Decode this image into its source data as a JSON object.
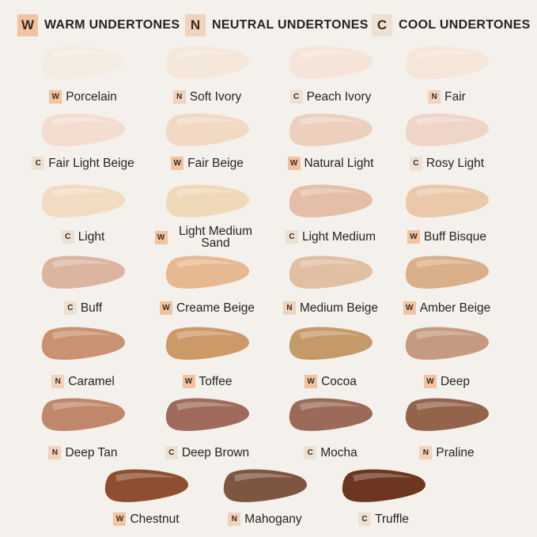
{
  "legend": [
    {
      "letter": "W",
      "label": "WARM UNDERTONES",
      "color": "#f1c3a1"
    },
    {
      "letter": "N",
      "label": "NEUTRAL UNDERTONES",
      "color": "#f0d3bd"
    },
    {
      "letter": "C",
      "label": "COOL UNDERTONES",
      "color": "#eee0d2"
    }
  ],
  "shades": [
    {
      "name": "Porcelain",
      "undertone": "W",
      "color": "#f4ece3"
    },
    {
      "name": "Soft Ivory",
      "undertone": "N",
      "color": "#f5e7da"
    },
    {
      "name": "Peach Ivory",
      "undertone": "C",
      "color": "#f6e4d9"
    },
    {
      "name": "Fair",
      "undertone": "N",
      "color": "#f6e6d8"
    },
    {
      "name": "Fair Light Beige",
      "undertone": "C",
      "color": "#f3ddd0"
    },
    {
      "name": "Fair Beige",
      "undertone": "W",
      "color": "#f1d9c4"
    },
    {
      "name": "Natural Light",
      "undertone": "W",
      "color": "#ecd0bd"
    },
    {
      "name": "Rosy Light",
      "undertone": "C",
      "color": "#efd5c8"
    },
    {
      "name": "Light",
      "undertone": "C",
      "color": "#f1dcc3"
    },
    {
      "name": "Light Medium Sand",
      "undertone": "W",
      "color": "#efd9b9"
    },
    {
      "name": "Light Medium",
      "undertone": "C",
      "color": "#e4bea6"
    },
    {
      "name": "Buff Bisque",
      "undertone": "W",
      "color": "#eac9aa"
    },
    {
      "name": "Buff",
      "undertone": "C",
      "color": "#dcb5a0"
    },
    {
      "name": "Creame Beige",
      "undertone": "W",
      "color": "#e7b993"
    },
    {
      "name": "Medium Beige",
      "undertone": "N",
      "color": "#e1bfa2"
    },
    {
      "name": "Amber Beige",
      "undertone": "W",
      "color": "#d9b08a"
    },
    {
      "name": "Caramel",
      "undertone": "N",
      "color": "#c99270"
    },
    {
      "name": "Toffee",
      "undertone": "W",
      "color": "#cc9a69"
    },
    {
      "name": "Cocoa",
      "undertone": "W",
      "color": "#c59a6a"
    },
    {
      "name": "Deep",
      "undertone": "W",
      "color": "#c59a80"
    },
    {
      "name": "Deep Tan",
      "undertone": "N",
      "color": "#c0876a"
    },
    {
      "name": "Deep Brown",
      "undertone": "C",
      "color": "#a06b5c"
    },
    {
      "name": "Mocha",
      "undertone": "C",
      "color": "#9c6a58"
    },
    {
      "name": "Praline",
      "undertone": "N",
      "color": "#94634c"
    },
    {
      "name": "Chestnut",
      "undertone": "W",
      "color": "#8e4f30"
    },
    {
      "name": "Mahogany",
      "undertone": "N",
      "color": "#7e5541"
    },
    {
      "name": "Truffle",
      "undertone": "C",
      "color": "#6c3620"
    }
  ]
}
